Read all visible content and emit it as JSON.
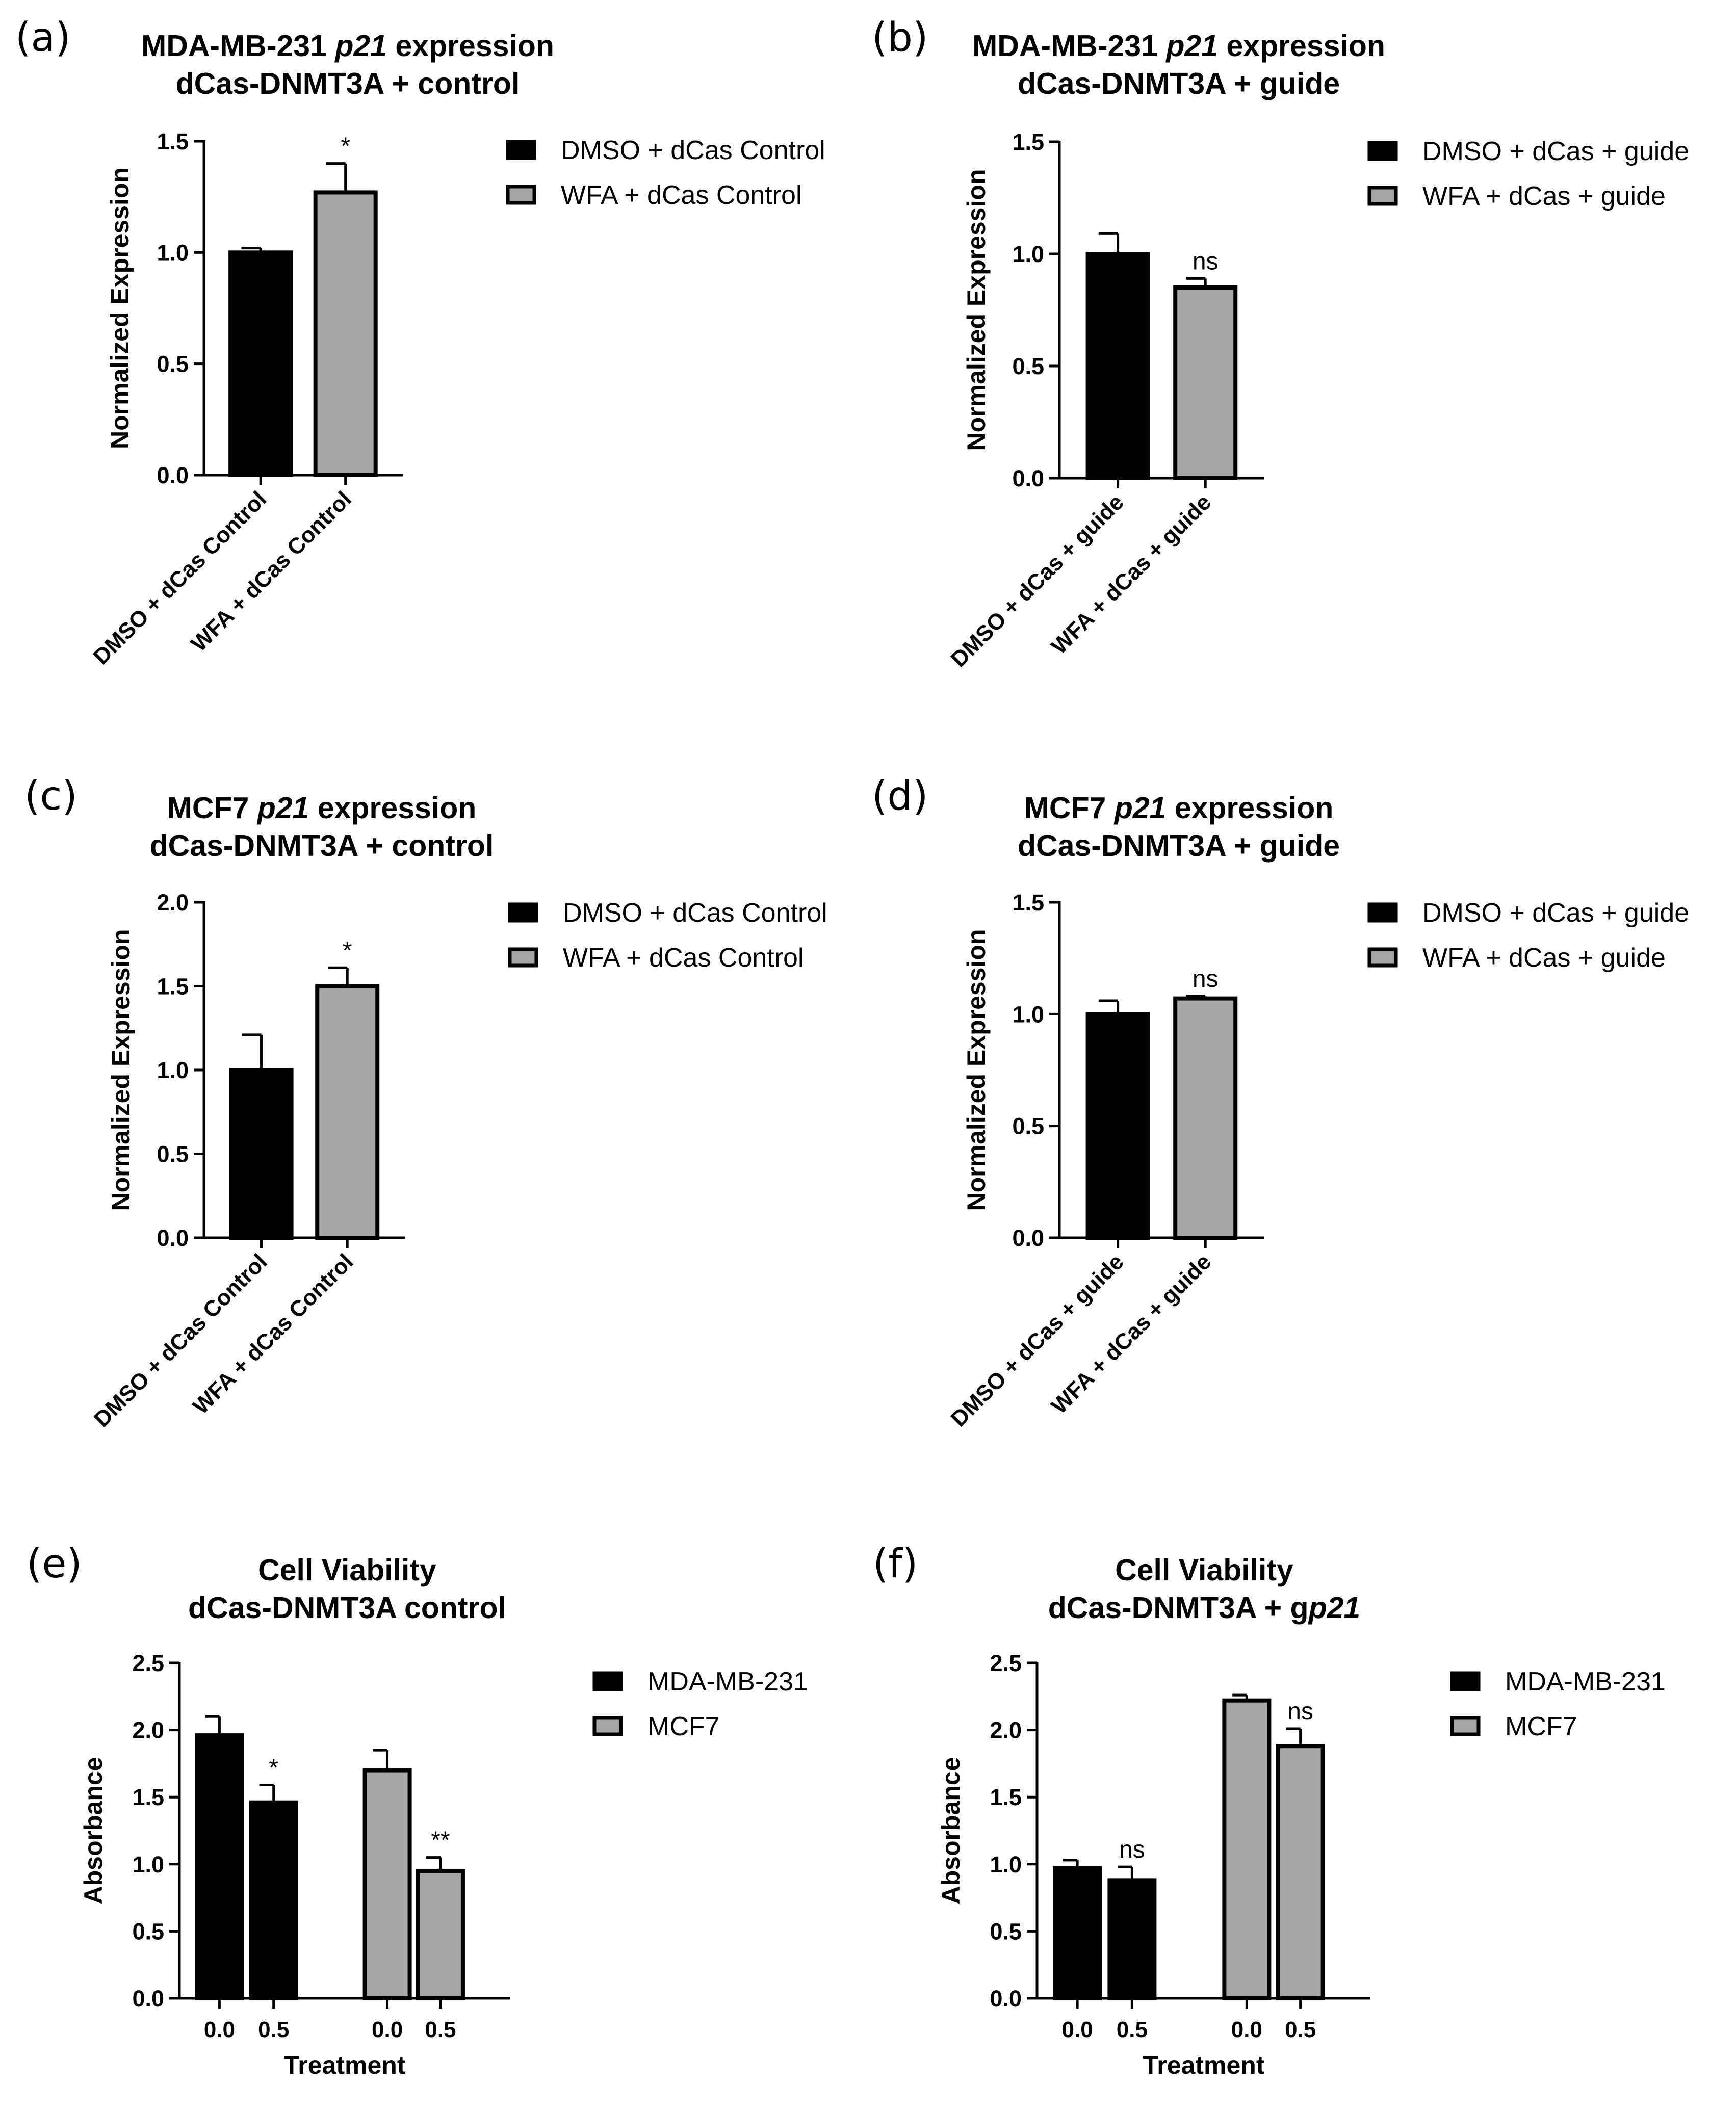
{
  "figure": {
    "background": "#ffffff"
  },
  "colors": {
    "series_0": "#000000",
    "series_1": "#a6a6a6",
    "outline": "#000000"
  },
  "chart_data": [
    {
      "panel": "(a)",
      "type": "bar",
      "title_parts": [
        [
          {
            "text": "MDA-MB-231 ",
            "italic": false
          },
          {
            "text": "p21",
            "italic": true
          },
          {
            "text": " expression",
            "italic": false
          }
        ],
        [
          {
            "text": "dCas-DNMT3A + control",
            "italic": false
          }
        ]
      ],
      "ylabel": "Normalized Expression",
      "xlabel": "",
      "ylim": [
        0,
        1.5
      ],
      "yticks": [
        "0.0",
        "0.5",
        "1.0",
        "1.5"
      ],
      "categories": [
        "DMSO + dCas Control",
        "WFA + dCas Control"
      ],
      "category_labels_rotated": true,
      "values": [
        1.0,
        1.27
      ],
      "errors": [
        0.02,
        0.13
      ],
      "fills": [
        0,
        1
      ],
      "significance": [
        "",
        "*"
      ],
      "legend": [
        {
          "label": "DMSO + dCas Control",
          "fill": 0
        },
        {
          "label": "WFA + dCas Control",
          "fill": 1
        }
      ]
    },
    {
      "panel": "(b)",
      "type": "bar",
      "title_parts": [
        [
          {
            "text": "MDA-MB-231 ",
            "italic": false
          },
          {
            "text": "p21",
            "italic": true
          },
          {
            "text": " expression",
            "italic": false
          }
        ],
        [
          {
            "text": "dCas-DNMT3A + guide",
            "italic": false
          }
        ]
      ],
      "ylabel": "Normalized Expression",
      "xlabel": "",
      "ylim": [
        0,
        1.5
      ],
      "yticks": [
        "0.0",
        "0.5",
        "1.0",
        "1.5"
      ],
      "categories": [
        "DMSO + dCas + guide",
        "WFA + dCas + guide"
      ],
      "category_labels_rotated": true,
      "values": [
        1.0,
        0.85
      ],
      "errors": [
        0.09,
        0.04
      ],
      "fills": [
        0,
        1
      ],
      "significance": [
        "",
        "ns"
      ],
      "legend": [
        {
          "label": "DMSO + dCas + guide",
          "fill": 0
        },
        {
          "label": "WFA + dCas + guide",
          "fill": 1
        }
      ]
    },
    {
      "panel": "(c)",
      "type": "bar",
      "title_parts": [
        [
          {
            "text": "MCF7 ",
            "italic": false
          },
          {
            "text": "p21",
            "italic": true
          },
          {
            "text": " expression",
            "italic": false
          }
        ],
        [
          {
            "text": "dCas-DNMT3A + control",
            "italic": false
          }
        ]
      ],
      "ylabel": "Normalized Expression",
      "xlabel": "",
      "ylim": [
        0,
        2.0
      ],
      "yticks": [
        "0.0",
        "0.5",
        "1.0",
        "1.5",
        "2.0"
      ],
      "categories": [
        "DMSO + dCas Control",
        "WFA + dCas Control"
      ],
      "category_labels_rotated": true,
      "values": [
        1.0,
        1.5
      ],
      "errors": [
        0.21,
        0.11
      ],
      "fills": [
        0,
        1
      ],
      "significance": [
        "",
        "*"
      ],
      "legend": [
        {
          "label": "DMSO + dCas Control",
          "fill": 0
        },
        {
          "label": "WFA + dCas Control",
          "fill": 1
        }
      ]
    },
    {
      "panel": "(d)",
      "type": "bar",
      "title_parts": [
        [
          {
            "text": "MCF7 ",
            "italic": false
          },
          {
            "text": "p21",
            "italic": true
          },
          {
            "text": " expression",
            "italic": false
          }
        ],
        [
          {
            "text": "dCas-DNMT3A + guide",
            "italic": false
          }
        ]
      ],
      "ylabel": "Normalized Expression",
      "xlabel": "",
      "ylim": [
        0,
        1.5
      ],
      "yticks": [
        "0.0",
        "0.5",
        "1.0",
        "1.5"
      ],
      "categories": [
        "DMSO + dCas + guide",
        "WFA + dCas + guide"
      ],
      "category_labels_rotated": true,
      "values": [
        1.0,
        1.07
      ],
      "errors": [
        0.06,
        0.01
      ],
      "fills": [
        0,
        1
      ],
      "significance": [
        "",
        "ns"
      ],
      "legend": [
        {
          "label": "DMSO + dCas + guide",
          "fill": 0
        },
        {
          "label": "WFA + dCas + guide",
          "fill": 1
        }
      ]
    },
    {
      "panel": "(e)",
      "type": "bar",
      "title_parts": [
        [
          {
            "text": "Cell Viability",
            "italic": false
          }
        ],
        [
          {
            "text": "dCas-DNMT3A control",
            "italic": false
          }
        ]
      ],
      "ylabel": "Absorbance",
      "xlabel": "Treatment",
      "ylim": [
        0,
        2.5
      ],
      "yticks": [
        "0.0",
        "0.5",
        "1.0",
        "1.5",
        "2.0",
        "2.5"
      ],
      "categories": [
        "0.0",
        "0.5",
        "0.0",
        "0.5"
      ],
      "category_labels_rotated": false,
      "values": [
        1.96,
        1.46,
        1.7,
        0.95
      ],
      "errors": [
        0.14,
        0.13,
        0.15,
        0.1
      ],
      "fills": [
        0,
        0,
        1,
        1
      ],
      "significance": [
        "",
        "*",
        "",
        "**"
      ],
      "legend": [
        {
          "label": "MDA-MB-231",
          "fill": 0
        },
        {
          "label": "MCF7",
          "fill": 1
        }
      ]
    },
    {
      "panel": "(f)",
      "type": "bar",
      "title_parts": [
        [
          {
            "text": "Cell Viability",
            "italic": false
          }
        ],
        [
          {
            "text": "dCas-DNMT3A + g",
            "italic": false
          },
          {
            "text": "p21",
            "italic": true
          }
        ]
      ],
      "ylabel": "Absorbance",
      "xlabel": "Treatment",
      "ylim": [
        0,
        2.5
      ],
      "yticks": [
        "0.0",
        "0.5",
        "1.0",
        "1.5",
        "2.0",
        "2.5"
      ],
      "categories": [
        "0.0",
        "0.5",
        "0.0",
        "0.5"
      ],
      "category_labels_rotated": false,
      "values": [
        0.97,
        0.88,
        2.22,
        1.88
      ],
      "errors": [
        0.06,
        0.1,
        0.04,
        0.13
      ],
      "fills": [
        0,
        0,
        1,
        1
      ],
      "significance": [
        "",
        "ns",
        "",
        "ns"
      ],
      "legend": [
        {
          "label": "MDA-MB-231",
          "fill": 0
        },
        {
          "label": "MCF7",
          "fill": 1
        }
      ]
    }
  ]
}
